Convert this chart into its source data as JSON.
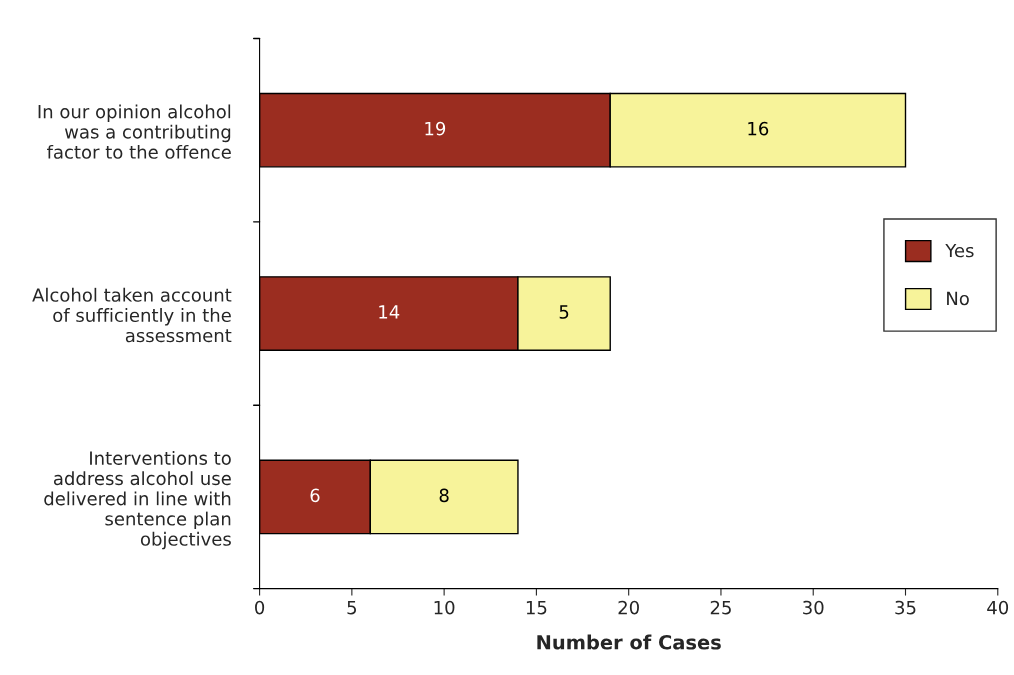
{
  "chart_data": {
    "type": "bar",
    "orientation": "horizontal",
    "stacked": true,
    "xlabel": "Number of Cases",
    "categories": [
      "In our opinion alcohol\nwas a contributing\nfactor to the offence",
      "Alcohol taken account\nof sufficiently in the\nassessment",
      "Interventions to\naddress alcohol use\ndelivered in line with\nsentence plan\nobjectives"
    ],
    "series": [
      {
        "name": "Yes",
        "color": "#9b2d20",
        "values": [
          19,
          14,
          6
        ]
      },
      {
        "name": "No",
        "color": "#f7f39a",
        "values": [
          16,
          5,
          8
        ]
      }
    ],
    "xlim": [
      0,
      40
    ],
    "xticks": [
      0,
      5,
      10,
      15,
      20,
      25,
      30,
      35,
      40
    ],
    "data_labels": true,
    "legend": "right",
    "grid": false
  }
}
